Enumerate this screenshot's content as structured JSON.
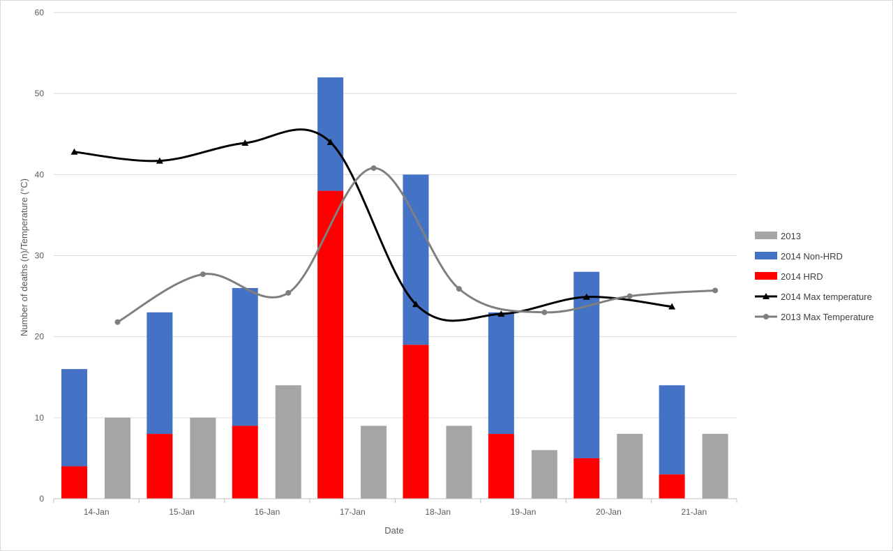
{
  "chart_data": {
    "type": "bar",
    "title": "",
    "xlabel": "Date",
    "ylabel": "Number of deaths (n)/Temperature (°C)",
    "ylim": [
      0,
      60
    ],
    "yticks": [
      0,
      10,
      20,
      30,
      40,
      50,
      60
    ],
    "grid": true,
    "legend_position": "right",
    "categories": [
      "14-Jan",
      "15-Jan",
      "16-Jan",
      "17-Jan",
      "18-Jan",
      "19-Jan",
      "20-Jan",
      "21-Jan"
    ],
    "bar_series": [
      {
        "name": "2013",
        "color": "#a5a5a5",
        "values": [
          10,
          10,
          14,
          9,
          9,
          6,
          8,
          8
        ]
      },
      {
        "name": "2014 Non-HRD",
        "color": "#4472c4",
        "values": [
          12,
          15,
          17,
          14,
          21,
          15,
          23,
          11
        ]
      },
      {
        "name": "2014 HRD",
        "color": "#ff0000",
        "values": [
          4,
          8,
          9,
          38,
          19,
          8,
          5,
          3
        ]
      }
    ],
    "line_series": [
      {
        "name": "2014 Max temperature",
        "color": "#000000",
        "marker": "triangle",
        "values": [
          42.8,
          41.7,
          43.9,
          44.0,
          24.0,
          22.8,
          24.9,
          23.7
        ]
      },
      {
        "name": "2013 Max Temperature",
        "color": "#7f7f7f",
        "marker": "circle",
        "values": [
          21.8,
          27.7,
          25.4,
          40.8,
          25.9,
          23.0,
          25.0,
          25.7
        ]
      }
    ],
    "legend_order": [
      "2013",
      "2014 Non-HRD",
      "2014 HRD",
      "2014 Max temperature",
      "2013 Max Temperature"
    ]
  }
}
